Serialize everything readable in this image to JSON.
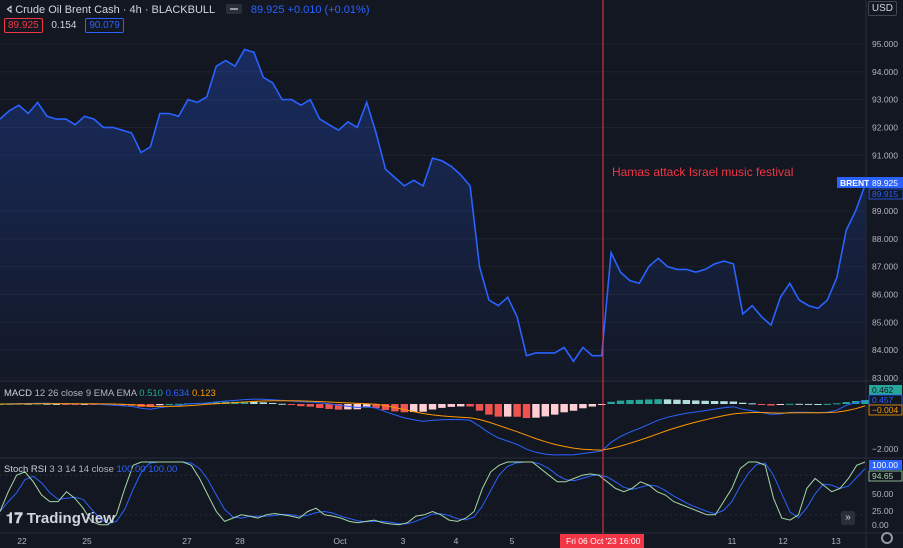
{
  "header": {
    "title": "Crude Oil Brent Cash · 4h · BLACKBULL",
    "change": "89.925 +0.010 (+0.01%)",
    "badges": [
      "89.925",
      "0.154",
      "90.079"
    ],
    "currency": "USD"
  },
  "annotation": "Hamas attack Israel music festival",
  "price_scale": {
    "ticks": [
      "95.000",
      "94.000",
      "93.000",
      "92.000",
      "91.000",
      "89.000",
      "88.000",
      "87.000",
      "86.000",
      "85.000",
      "84.000",
      "83.000"
    ],
    "last_label": "BRENT",
    "last_value": "89.925",
    "secondary_value": "89.915"
  },
  "macd": {
    "label": "MACD",
    "params": "12 26 close 9 EMA EMA",
    "values": [
      "0.510",
      "0.634",
      "0.123"
    ],
    "scale": [
      "0.462",
      "0.457",
      "−0.004",
      "−2.000"
    ]
  },
  "stoch": {
    "label": "Stoch RSI",
    "params": "3 3 14 14 close",
    "values": [
      "100.00",
      "100.00"
    ],
    "scale": [
      "100.00",
      "94.65",
      "50.00",
      "25.00",
      "0.00"
    ]
  },
  "time_axis": {
    "labels": [
      "22",
      "25",
      "27",
      "28",
      "Oct",
      "3",
      "4",
      "5",
      "11",
      "12",
      "13"
    ],
    "crosshair": "Fri 06 Oct '23   16:00"
  },
  "branding": "TradingView",
  "colors": {
    "background": "#131722",
    "line": "#2962ff",
    "accent_red": "#f23645",
    "macd_signal": "#ff9800",
    "macd_pos": "#26a69a",
    "macd_neg": "#ef5350"
  },
  "chart_data": {
    "type": "line",
    "title": "Crude Oil Brent Cash · 4h · BLACKBULL",
    "ylim": [
      83,
      95.5
    ],
    "values": [
      92.3,
      92.6,
      92.8,
      92.5,
      92.9,
      92.4,
      92.3,
      92.3,
      92.1,
      92.4,
      92.3,
      92.0,
      92.0,
      91.9,
      91.8,
      91.1,
      91.3,
      92.5,
      92.5,
      92.4,
      93.0,
      92.9,
      93.1,
      94.2,
      94.4,
      94.2,
      94.8,
      94.7,
      93.8,
      93.6,
      93.0,
      93.0,
      92.8,
      93.0,
      92.3,
      92.1,
      91.9,
      92.2,
      92.0,
      92.9,
      91.8,
      90.5,
      90.2,
      89.9,
      90.1,
      89.9,
      90.9,
      90.8,
      90.6,
      90.3,
      89.9,
      87.0,
      85.8,
      85.6,
      85.9,
      85.2,
      83.8,
      83.9,
      83.9,
      83.9,
      84.1,
      83.6,
      84.1,
      83.8,
      83.8,
      87.5,
      86.8,
      86.5,
      86.4,
      87.0,
      87.3,
      87.0,
      86.9,
      86.9,
      86.8,
      86.9,
      87.1,
      87.2,
      87.1,
      85.3,
      85.6,
      85.2,
      84.9,
      85.9,
      86.4,
      85.8,
      85.6,
      85.5,
      85.8,
      86.6,
      88.3,
      89.0,
      89.925
    ],
    "stoch_k": [
      25,
      55,
      80,
      85,
      70,
      50,
      40,
      40,
      55,
      45,
      30,
      10,
      5,
      5,
      20,
      60,
      95,
      100,
      100,
      100,
      100,
      100,
      100,
      95,
      75,
      50,
      25,
      10,
      15,
      20,
      18,
      15,
      20,
      22,
      20,
      18,
      15,
      25,
      30,
      20,
      18,
      15,
      10,
      8,
      10,
      12,
      8,
      6,
      5,
      8,
      18,
      20,
      25,
      20,
      12,
      10,
      15,
      25,
      60,
      85,
      95,
      100,
      100,
      100,
      100,
      90,
      80,
      70,
      70,
      75,
      80,
      82,
      80,
      70,
      60,
      55,
      60,
      70,
      65,
      55,
      50,
      40,
      35,
      30,
      25,
      20,
      20,
      40,
      60,
      90,
      100,
      100,
      95,
      45,
      15,
      12,
      20,
      60,
      75,
      65,
      55,
      60,
      75,
      95,
      100
    ]
  }
}
